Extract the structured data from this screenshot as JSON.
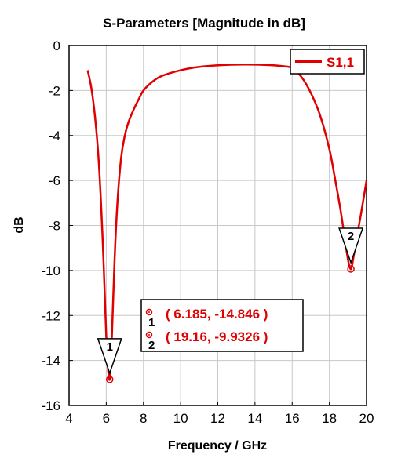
{
  "chart_data": {
    "type": "line",
    "title": "S-Parameters [Magnitude in dB]",
    "xlabel": "Frequency / GHz",
    "ylabel": "dB",
    "xlim": [
      4,
      20
    ],
    "ylim": [
      -16,
      0
    ],
    "xticks": [
      4,
      6,
      8,
      10,
      12,
      14,
      16,
      18,
      20
    ],
    "yticks": [
      0,
      -2,
      -4,
      -6,
      -8,
      -10,
      -12,
      -14,
      -16
    ],
    "grid": true,
    "legend": {
      "position": "top-right"
    },
    "series": [
      {
        "name": "S1,1",
        "color": "#e00000",
        "x": [
          5.0,
          5.2,
          5.4,
          5.6,
          5.8,
          5.95,
          6.05,
          6.185,
          6.3,
          6.45,
          6.6,
          6.8,
          7.0,
          7.2,
          7.5,
          7.8,
          8.0,
          8.5,
          9.0,
          10.0,
          11.0,
          12.0,
          13.0,
          14.0,
          15.0,
          15.5,
          16.0,
          16.5,
          17.0,
          17.5,
          18.0,
          18.3,
          18.6,
          18.8,
          19.0,
          19.16,
          19.3,
          19.5,
          19.7,
          20.0
        ],
        "y": [
          -1.1,
          -1.9,
          -3.2,
          -5.2,
          -8.5,
          -11.8,
          -13.8,
          -14.846,
          -13.0,
          -9.5,
          -7.0,
          -5.0,
          -4.0,
          -3.4,
          -2.8,
          -2.3,
          -2.0,
          -1.6,
          -1.35,
          -1.1,
          -0.95,
          -0.88,
          -0.85,
          -0.85,
          -0.88,
          -0.92,
          -1.0,
          -1.4,
          -2.1,
          -3.1,
          -4.6,
          -5.9,
          -7.3,
          -8.4,
          -9.5,
          -9.9326,
          -9.4,
          -8.4,
          -7.5,
          -6.0
        ]
      }
    ],
    "markers": [
      {
        "id": "1",
        "x": 6.185,
        "y": -14.846,
        "readout": "( 6.185, -14.846 )"
      },
      {
        "id": "2",
        "x": 19.16,
        "y": -9.9326,
        "readout": "( 19.16, -9.9326 )"
      }
    ]
  },
  "colors": {
    "series": "#e00000",
    "grid": "#c8c8c8",
    "axis": "#000000",
    "marker": "#e00000"
  }
}
